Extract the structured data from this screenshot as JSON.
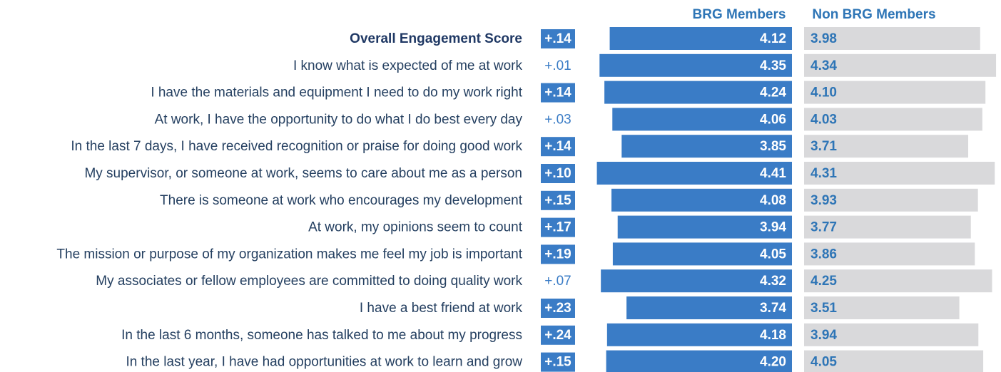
{
  "chart_data": {
    "type": "back-to-back-bar",
    "categories": [
      "Overall Engagement Score",
      "I know what is expected of me at work",
      "I have the materials and equipment I need to do my work right",
      "At work, I have the opportunity to do what I do best every day",
      "In the last 7 days, I have received recognition or praise for doing good work",
      "My supervisor, or someone at work, seems to care about me as a person",
      "There is someone at work who encourages my development",
      "At work, my opinions seem to count",
      "The mission or purpose of my organization makes me feel my job is important",
      "My associates or fellow employees are committed to doing quality work",
      "I have a best friend at work",
      "In the last 6 months, someone has talked to me about my progress",
      "In the last year, I have had opportunities at work to learn and grow"
    ],
    "series": [
      {
        "name": "BRG Members",
        "color": "#3a7cc6",
        "label_color": "#ffffff",
        "values": [
          4.12,
          4.35,
          4.24,
          4.06,
          3.85,
          4.41,
          4.08,
          3.94,
          4.05,
          4.32,
          3.74,
          4.18,
          4.2
        ],
        "value_labels": [
          "4.12",
          "4.35",
          "4.24",
          "4.06",
          "3.85",
          "4.41",
          "4.08",
          "3.94",
          "4.05",
          "4.32",
          "3.74",
          "4.18",
          "4.20"
        ]
      },
      {
        "name": "Non BRG Members",
        "color": "#d9d9db",
        "label_color": "#2e75b6",
        "values": [
          3.98,
          4.34,
          4.1,
          4.03,
          3.71,
          4.31,
          3.93,
          3.77,
          3.86,
          4.25,
          3.51,
          3.94,
          4.05
        ],
        "value_labels": [
          "3.98",
          "4.34",
          "4.10",
          "4.03",
          "3.71",
          "4.31",
          "3.93",
          "3.77",
          "3.86",
          "4.25",
          "3.51",
          "3.94",
          "4.05"
        ]
      }
    ],
    "differences": {
      "values": [
        0.14,
        0.01,
        0.14,
        0.03,
        0.14,
        0.1,
        0.15,
        0.17,
        0.19,
        0.07,
        0.23,
        0.24,
        0.15
      ],
      "value_labels": [
        "+.14",
        "+.01",
        "+.14",
        "+.03",
        "+.14",
        "+.10",
        "+.15",
        "+.17",
        "+.19",
        "+.07",
        "+.23",
        "+.24",
        "+.15"
      ],
      "highlight": [
        true,
        false,
        true,
        false,
        true,
        true,
        true,
        true,
        true,
        false,
        true,
        true,
        true
      ],
      "color": "#3a7cc6"
    },
    "xlim": [
      0,
      4.5
    ]
  }
}
